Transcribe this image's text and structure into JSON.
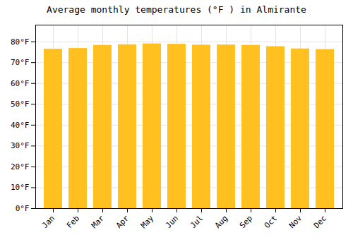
{
  "chart_data": {
    "type": "bar",
    "title": "Average monthly temperatures (°F ) in Almirante",
    "categories": [
      "Jan",
      "Feb",
      "Mar",
      "Apr",
      "May",
      "Jun",
      "Jul",
      "Aug",
      "Sep",
      "Oct",
      "Nov",
      "Dec"
    ],
    "values": [
      76.5,
      76.8,
      78.3,
      78.6,
      79.0,
      78.8,
      78.4,
      78.5,
      78.3,
      77.7,
      76.6,
      76.3
    ],
    "color": "#FFC020",
    "ylim": [
      0,
      88
    ],
    "yticks": [
      {
        "value": 0,
        "label": "0°F"
      },
      {
        "value": 10,
        "label": "10°F"
      },
      {
        "value": 20,
        "label": "20°F"
      },
      {
        "value": 30,
        "label": "30°F"
      },
      {
        "value": 40,
        "label": "40°F"
      },
      {
        "value": 50,
        "label": "50°F"
      },
      {
        "value": 60,
        "label": "60°F"
      },
      {
        "value": 70,
        "label": "70°F"
      },
      {
        "value": 80,
        "label": "80°F"
      }
    ],
    "grid": true
  }
}
